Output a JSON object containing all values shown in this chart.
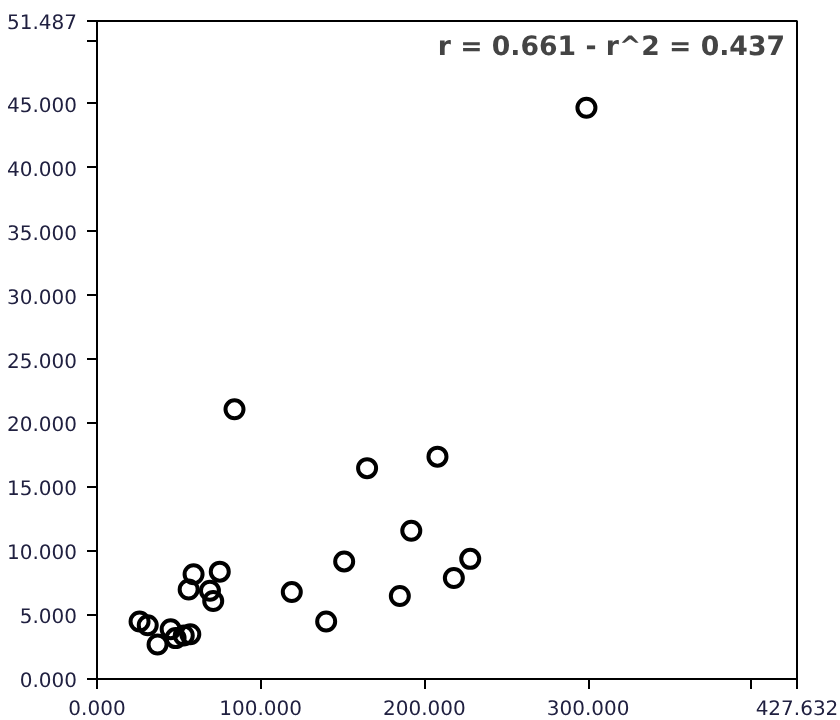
{
  "chart_data": {
    "type": "scatter",
    "marker": "circle",
    "grid": false,
    "annotations": [
      "r = 0.661 - r^2 = 0.437"
    ],
    "x": [
      299,
      84,
      208,
      165,
      192,
      151,
      228,
      218,
      185,
      119,
      140,
      59,
      75,
      56,
      69,
      71,
      26,
      31,
      37,
      45,
      48,
      53,
      57
    ],
    "series": [
      {
        "color": "#000000",
        "values": [
          44.7,
          21.1,
          17.4,
          16.5,
          11.6,
          9.2,
          9.4,
          7.9,
          6.5,
          6.8,
          4.5,
          8.2,
          8.4,
          7.0,
          6.9,
          6.1,
          4.5,
          4.2,
          2.7,
          3.9,
          3.2,
          3.4,
          3.5
        ]
      }
    ],
    "xlim": [
      0,
      427.632
    ],
    "ylim": [
      0,
      51.487
    ],
    "xticks": [
      {
        "value": 0,
        "label": "0.000"
      },
      {
        "value": 100,
        "label": "100.000"
      },
      {
        "value": 200,
        "label": "200.000"
      },
      {
        "value": 300,
        "label": "300.000"
      },
      {
        "value": 400,
        "label": null
      },
      {
        "value": 427.632,
        "label": "427.632"
      }
    ],
    "yticks": [
      {
        "value": 0,
        "label": "0.000"
      },
      {
        "value": 5,
        "label": "5.000"
      },
      {
        "value": 10,
        "label": "10.000"
      },
      {
        "value": 15,
        "label": "15.000"
      },
      {
        "value": 20,
        "label": "20.000"
      },
      {
        "value": 25,
        "label": "25.000"
      },
      {
        "value": 30,
        "label": "30.000"
      },
      {
        "value": 35,
        "label": "35.000"
      },
      {
        "value": 40,
        "label": "40.000"
      },
      {
        "value": 45,
        "label": "45.000"
      },
      {
        "value": 50,
        "label": null
      },
      {
        "value": 51.487,
        "label": "51.487"
      }
    ]
  }
}
